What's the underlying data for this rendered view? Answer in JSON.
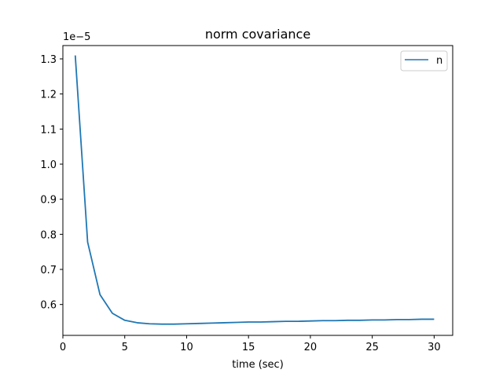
{
  "chart_data": {
    "type": "line",
    "title": "norm covariance",
    "xlabel": "time (sec)",
    "ylabel": "",
    "offset_text": "1e−5",
    "xlim": [
      0,
      31.5
    ],
    "ylim": [
      0.512,
      1.338
    ],
    "xticks": [
      0,
      5,
      10,
      15,
      20,
      25,
      30
    ],
    "xtick_labels": [
      "0",
      "5",
      "10",
      "15",
      "20",
      "25",
      "30"
    ],
    "yticks": [
      0.6,
      0.7,
      0.8,
      0.9,
      1.0,
      1.1,
      1.2,
      1.3
    ],
    "ytick_labels": [
      "0.6",
      "0.7",
      "0.8",
      "0.9",
      "1.0",
      "1.1",
      "1.2",
      "1.3"
    ],
    "grid": false,
    "legend": {
      "position": "top-right",
      "entries": [
        "n"
      ]
    },
    "series": [
      {
        "name": "n",
        "color": "#1f77b4",
        "x": [
          1,
          2,
          3,
          4,
          5,
          6,
          7,
          8,
          9,
          10,
          11,
          12,
          13,
          14,
          15,
          16,
          17,
          18,
          19,
          20,
          21,
          22,
          23,
          24,
          25,
          26,
          27,
          28,
          29,
          30
        ],
        "y": [
          1.31,
          0.778,
          0.628,
          0.575,
          0.555,
          0.548,
          0.545,
          0.544,
          0.544,
          0.545,
          0.546,
          0.547,
          0.548,
          0.549,
          0.55,
          0.55,
          0.551,
          0.552,
          0.552,
          0.553,
          0.554,
          0.554,
          0.555,
          0.555,
          0.556,
          0.556,
          0.557,
          0.557,
          0.558,
          0.558
        ]
      }
    ]
  }
}
